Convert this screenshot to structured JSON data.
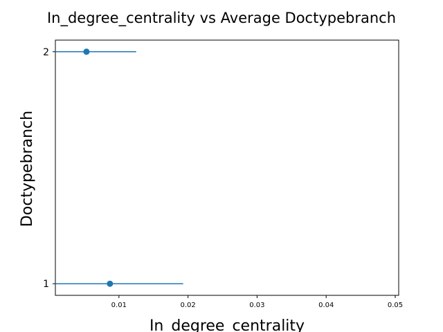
{
  "chart_data": {
    "type": "scatter",
    "title": "In_degree_centrality vs Average Doctypebranch",
    "xlabel": "In_degree_centrality",
    "ylabel": "Doctypebranch",
    "xlim": [
      0.0008,
      0.0505
    ],
    "ylim": [
      0.95,
      2.05
    ],
    "x_ticks": [
      0.01,
      0.02,
      0.03,
      0.04,
      0.05
    ],
    "x_tick_labels": [
      "0.01",
      "0.02",
      "0.03",
      "0.04",
      "0.05"
    ],
    "y_ticks": [
      1,
      2
    ],
    "y_tick_labels": [
      "1",
      "2"
    ],
    "grid": false,
    "color": "#1f77b4",
    "points": [
      {
        "y": 2,
        "x": 0.0053,
        "x_err_low": 0.0008,
        "x_err_high": 0.0125
      },
      {
        "y": 1,
        "x": 0.0087,
        "x_err_low": 0.0008,
        "x_err_high": 0.0193
      }
    ]
  }
}
